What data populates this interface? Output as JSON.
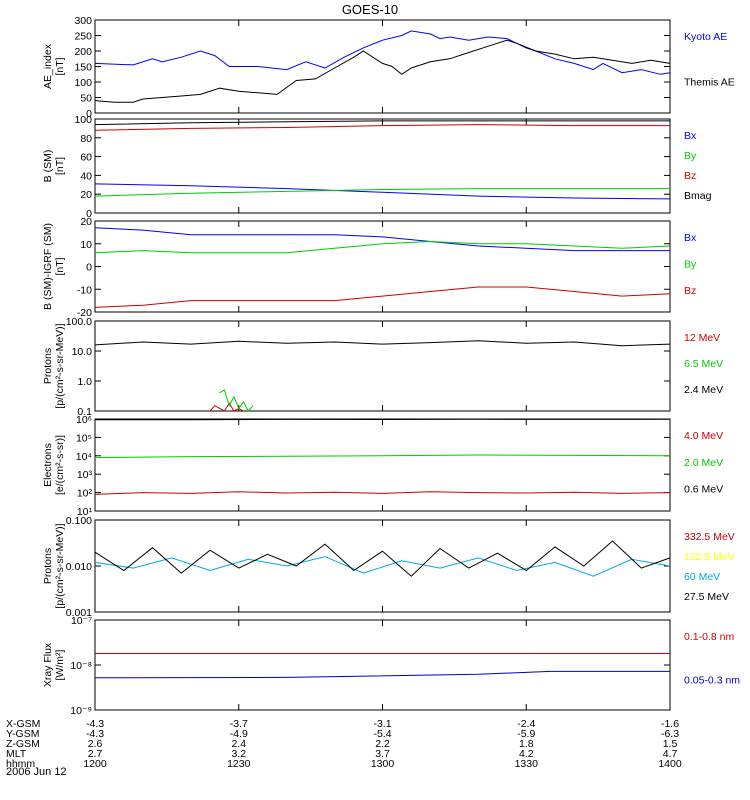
{
  "title": "GOES-10",
  "footer": {
    "row_labels": [
      "X-GSM",
      "Y-GSM",
      "Z-GSM",
      "MLT",
      "hhmm"
    ],
    "columns": [
      [
        "-4.3",
        "-4.3",
        "2.6",
        "2.7",
        "1200"
      ],
      [
        "-3.7",
        "-4.9",
        "2.4",
        "3.2",
        "1230"
      ],
      [
        "-3.1",
        "-5.4",
        "2.2",
        "3.7",
        "1300"
      ],
      [
        "-2.4",
        "-5.9",
        "1.8",
        "4.2",
        "1330"
      ],
      [
        "-1.6",
        "-6.3",
        "1.5",
        "4.7",
        "1400"
      ]
    ],
    "date": "2006 Jun 12"
  },
  "chart_data": [
    {
      "type": "line",
      "ylabel": [
        "AE_index",
        "[nT]"
      ],
      "ylim": [
        0,
        300
      ],
      "yticks": [
        "0",
        "50",
        "100",
        "150",
        "200",
        "250",
        "300"
      ],
      "xlim": [
        0,
        120
      ],
      "x_tick_labels": [
        "1200",
        "1230",
        "1300",
        "1330",
        "1400"
      ],
      "series": [
        {
          "name": "Kyoto AE",
          "color": "#0000ff",
          "x": [
            0,
            8,
            12,
            14,
            18,
            22,
            25,
            28,
            34,
            40,
            44,
            48,
            52,
            56,
            60,
            64,
            66,
            70,
            72,
            74,
            78,
            82,
            86,
            88,
            92,
            96,
            100,
            104,
            106,
            110,
            114,
            118,
            120
          ],
          "y": [
            160,
            155,
            175,
            165,
            180,
            200,
            185,
            150,
            150,
            140,
            165,
            145,
            180,
            210,
            235,
            250,
            265,
            255,
            240,
            245,
            235,
            245,
            240,
            225,
            200,
            175,
            160,
            140,
            160,
            130,
            140,
            125,
            130
          ]
        },
        {
          "name": "Themis AE",
          "color": "#000000",
          "x": [
            0,
            4,
            8,
            10,
            14,
            18,
            22,
            26,
            30,
            34,
            38,
            42,
            46,
            50,
            54,
            56,
            58,
            60,
            62,
            64,
            66,
            70,
            74,
            78,
            82,
            86,
            88,
            90,
            92,
            96,
            100,
            104,
            108,
            112,
            116,
            120
          ],
          "y": [
            40,
            35,
            35,
            45,
            50,
            55,
            60,
            80,
            70,
            65,
            60,
            105,
            110,
            145,
            180,
            200,
            180,
            160,
            150,
            125,
            145,
            165,
            175,
            195,
            215,
            235,
            225,
            210,
            200,
            190,
            175,
            180,
            170,
            160,
            170,
            160
          ]
        }
      ]
    },
    {
      "type": "line",
      "ylabel": [
        "B (SM)",
        "[nT]"
      ],
      "ylim": [
        0,
        100
      ],
      "yticks": [
        "0",
        "20",
        "40",
        "60",
        "80",
        "100"
      ],
      "xlim": [
        0,
        120
      ],
      "series": [
        {
          "name": "Bx",
          "color": "#0000ff",
          "x": [
            0,
            20,
            40,
            60,
            80,
            100,
            120
          ],
          "y": [
            31,
            29,
            26,
            22,
            18,
            16,
            15
          ]
        },
        {
          "name": "By",
          "color": "#00cc00",
          "x": [
            0,
            20,
            40,
            60,
            80,
            100,
            120
          ],
          "y": [
            18,
            21,
            23,
            25,
            26,
            26,
            26
          ]
        },
        {
          "name": "Bz",
          "color": "#cc0000",
          "x": [
            0,
            20,
            40,
            60,
            80,
            100,
            120
          ],
          "y": [
            88,
            90,
            91,
            93,
            94,
            93,
            93
          ]
        },
        {
          "name": "Bmag",
          "color": "#000000",
          "x": [
            0,
            20,
            40,
            60,
            80,
            100,
            120
          ],
          "y": [
            94,
            96,
            97,
            98,
            98,
            98,
            98
          ]
        }
      ]
    },
    {
      "type": "line",
      "ylabel": [
        "B (SM)-IGRF (SM)",
        "[nT]"
      ],
      "ylim": [
        -20,
        20
      ],
      "yticks": [
        "-20",
        "-10",
        "0",
        "10",
        "20"
      ],
      "xlim": [
        0,
        120
      ],
      "series": [
        {
          "name": "Bx",
          "color": "#0000ff",
          "x": [
            0,
            10,
            20,
            30,
            40,
            50,
            60,
            70,
            80,
            90,
            100,
            110,
            120
          ],
          "y": [
            17,
            16,
            14,
            14,
            14,
            14,
            13,
            11,
            9,
            8,
            7,
            7,
            7
          ]
        },
        {
          "name": "By",
          "color": "#00cc00",
          "x": [
            0,
            10,
            20,
            30,
            40,
            50,
            60,
            70,
            80,
            90,
            100,
            110,
            120
          ],
          "y": [
            6,
            7,
            6,
            6,
            6,
            8,
            10,
            11,
            10,
            10,
            9,
            8,
            9
          ]
        },
        {
          "name": "Bz",
          "color": "#cc0000",
          "x": [
            0,
            10,
            20,
            30,
            40,
            50,
            60,
            70,
            80,
            90,
            100,
            110,
            120
          ],
          "y": [
            -18,
            -17,
            -15,
            -15,
            -15,
            -15,
            -13,
            -11,
            -9,
            -9,
            -11,
            -13,
            -12
          ]
        }
      ]
    },
    {
      "type": "line",
      "scale": "log",
      "ylabel": [
        "Protons",
        "[p/(cm²-s-sr-MeV)]"
      ],
      "ylim": [
        0.1,
        100
      ],
      "yticks": [
        "0.1",
        "1.0",
        "10.0",
        "100.0"
      ],
      "xlim": [
        0,
        120
      ],
      "series": [
        {
          "name": "12 MeV",
          "color": "#cc0000",
          "x": [
            24,
            25,
            27,
            28,
            29,
            30,
            31
          ],
          "y": [
            0.1,
            0.15,
            0.1,
            0.18,
            0.1,
            0.12,
            0.1
          ]
        },
        {
          "name": "6.5 MeV",
          "color": "#00cc00",
          "x": [
            26,
            27,
            28,
            29,
            30,
            31,
            32,
            33
          ],
          "y": [
            0.4,
            0.5,
            0.15,
            0.3,
            0.12,
            0.2,
            0.1,
            0.15
          ]
        },
        {
          "name": "2.4 MeV",
          "color": "#000000",
          "x": [
            0,
            10,
            20,
            30,
            40,
            50,
            60,
            70,
            80,
            90,
            100,
            110,
            120
          ],
          "y": [
            16,
            20,
            17,
            21,
            18,
            20,
            17,
            19,
            22,
            18,
            20,
            15,
            17
          ]
        }
      ]
    },
    {
      "type": "line",
      "scale": "log",
      "ylabel": [
        "Electrons",
        "[e/(cm²-s-sr)]"
      ],
      "ylim": [
        10,
        1000000
      ],
      "yticks": [
        "10¹",
        "10²",
        "10³",
        "10⁴",
        "10⁵",
        "10⁶"
      ],
      "xlim": [
        0,
        120
      ],
      "series": [
        {
          "name": "4.0 MeV",
          "color": "#cc0000",
          "x": [
            0,
            10,
            20,
            30,
            40,
            50,
            60,
            70,
            80,
            90,
            100,
            110,
            120
          ],
          "y": [
            80,
            100,
            90,
            110,
            95,
            105,
            90,
            110,
            100,
            95,
            105,
            90,
            100
          ]
        },
        {
          "name": "2.0 MeV",
          "color": "#00cc00",
          "x": [
            0,
            20,
            40,
            60,
            80,
            100,
            120
          ],
          "y": [
            8000,
            9000,
            9500,
            10000,
            11000,
            10500,
            10000
          ]
        },
        {
          "name": "0.6 MeV",
          "color": "#000000",
          "x": [
            0,
            20,
            40,
            60,
            80,
            100,
            120
          ],
          "y": [
            900000,
            920000,
            950000,
            940000,
            960000,
            950000,
            960000
          ]
        }
      ]
    },
    {
      "type": "line",
      "scale": "log",
      "ylabel": [
        "Protons",
        "[p/(cm²-s-sr-MeV)]"
      ],
      "ylim": [
        0.001,
        0.1
      ],
      "yticks": [
        "0.001",
        "0.010",
        "0.100"
      ],
      "xlim": [
        0,
        120
      ],
      "series": [
        {
          "name": "332.5 MeV",
          "color": "#cc0000",
          "x": [],
          "y": []
        },
        {
          "name": "122.5 MeV",
          "color": "#ffff00",
          "x": [],
          "y": []
        },
        {
          "name": "60 MeV",
          "color": "#00aadd",
          "x": [
            0,
            8,
            16,
            24,
            32,
            40,
            48,
            56,
            64,
            72,
            80,
            88,
            96,
            104,
            112,
            120
          ],
          "y": [
            0.012,
            0.009,
            0.015,
            0.008,
            0.014,
            0.01,
            0.016,
            0.007,
            0.013,
            0.009,
            0.015,
            0.008,
            0.012,
            0.006,
            0.014,
            0.01
          ]
        },
        {
          "name": "27.5 MeV",
          "color": "#000000",
          "x": [
            0,
            6,
            12,
            18,
            24,
            30,
            36,
            42,
            48,
            54,
            60,
            66,
            72,
            78,
            84,
            90,
            96,
            102,
            108,
            114,
            120
          ],
          "y": [
            0.02,
            0.008,
            0.025,
            0.007,
            0.022,
            0.009,
            0.018,
            0.01,
            0.03,
            0.008,
            0.021,
            0.006,
            0.024,
            0.009,
            0.019,
            0.008,
            0.026,
            0.01,
            0.035,
            0.009,
            0.015
          ]
        }
      ]
    },
    {
      "type": "line",
      "scale": "log",
      "ylabel": [
        "Xray Flux",
        "[W/m²]"
      ],
      "ylim": [
        1e-09,
        1e-07
      ],
      "yticks": [
        "10⁻⁹",
        "10⁻⁸",
        "10⁻⁷"
      ],
      "xlim": [
        0,
        120
      ],
      "series": [
        {
          "name": "0.1-0.8 nm",
          "color": "#cc0000",
          "x": [
            0,
            120
          ],
          "y": [
            1.8e-08,
            1.8e-08
          ]
        },
        {
          "name": "0.05-0.3 nm",
          "color": "#0000cc",
          "x": [
            0,
            40,
            80,
            95,
            120
          ],
          "y": [
            5.2e-09,
            5.3e-09,
            6.2e-09,
            7.2e-09,
            7.2e-09
          ]
        }
      ]
    }
  ]
}
